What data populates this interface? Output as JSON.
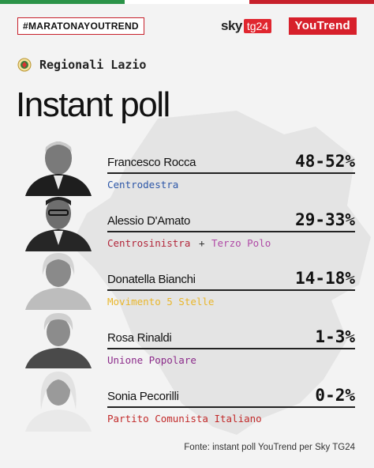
{
  "header": {
    "hashtag": "#MARATONAYOUTREND",
    "sky_word": "sky",
    "tg_word": "tg24",
    "youtrend": "YouTrend"
  },
  "region": {
    "label": "Regionali Lazio"
  },
  "title": "Instant poll",
  "candidates": [
    {
      "name": "Francesco Rocca",
      "range": "48-52%",
      "parties": [
        {
          "label": "Centrodestra",
          "color": "#2c56a7"
        }
      ]
    },
    {
      "name": "Alessio D'Amato",
      "range": "29-33%",
      "parties": [
        {
          "label": "Centrosinistra",
          "color": "#b2263a"
        },
        {
          "label": "+",
          "color": "#333333"
        },
        {
          "label": "Terzo Polo",
          "color": "#b04aa6"
        }
      ]
    },
    {
      "name": "Donatella Bianchi",
      "range": "14-18%",
      "parties": [
        {
          "label": "Movimento 5 Stelle",
          "color": "#e9b62a"
        }
      ]
    },
    {
      "name": "Rosa Rinaldi",
      "range": "1-3%",
      "parties": [
        {
          "label": "Unione Popolare",
          "color": "#8b2a8a"
        }
      ]
    },
    {
      "name": "Sonia Pecorilli",
      "range": "0-2%",
      "parties": [
        {
          "label": "Partito Comunista Italiano",
          "color": "#c22a2a"
        }
      ]
    }
  ],
  "footer": {
    "source": "Fonte: instant poll YouTrend per Sky TG24"
  },
  "colors": {
    "flag_green": "#2b9348",
    "flag_white": "#ffffff",
    "flag_red": "#c7202b",
    "background": "#f3f3f3"
  }
}
